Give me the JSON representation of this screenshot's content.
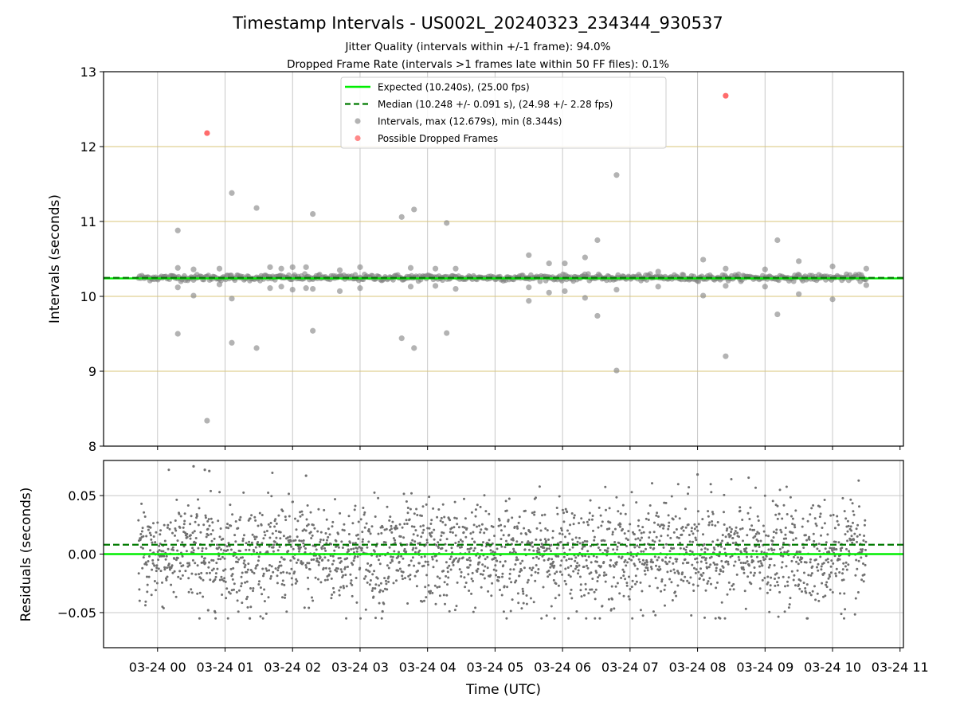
{
  "chart_data": [
    {
      "panel": "intervals",
      "type": "scatter",
      "title": "Timestamp Intervals - US002L_20240323_234344_930537",
      "subtitle_lines": [
        "Jitter Quality (intervals within +/-1 frame): 94.0%",
        "Dropped Frame Rate (intervals >1 frames late within 50 FF files): 0.1%"
      ],
      "xlabel": "",
      "ylabel": "Intervals (seconds)",
      "x_range_hours": [
        -0.8,
        11.05
      ],
      "ylim": [
        8,
        13
      ],
      "yticks": [
        8,
        9,
        10,
        11,
        12,
        13
      ],
      "y_gridlines": [
        9,
        10,
        11,
        12
      ],
      "x_gridlines_hours": [
        0,
        1,
        2,
        3,
        4,
        5,
        6,
        7,
        8,
        9,
        10
      ],
      "grid": true,
      "x_data_span": [
        "2024-03-23 23:43",
        "2024-03-24 10:30"
      ],
      "baseline_interval": 10.25,
      "baseline_band": [
        10.2,
        10.3
      ],
      "expected_line": 10.24,
      "median_line": 10.248,
      "legend": {
        "placement": "top-center",
        "entries": [
          {
            "label": "Expected (10.240s), (25.00 fps)",
            "style": "solid-line",
            "color": "#00ee00"
          },
          {
            "label": "Median (10.248 +/- 0.091 s), (24.98 +/- 2.28 fps)",
            "style": "dashed-line",
            "color": "#007a00"
          },
          {
            "label": "Intervals, max (12.679s), min (8.344s)",
            "style": "dot",
            "color": "#808080"
          },
          {
            "label": "Possible Dropped Frames",
            "style": "dot",
            "color": "#ff3b3b"
          }
        ]
      },
      "outliers": [
        {
          "t": "2024-03-24 00:18",
          "y": 10.88
        },
        {
          "t": "2024-03-24 00:18",
          "y": 10.38
        },
        {
          "t": "2024-03-24 00:18",
          "y": 10.12
        },
        {
          "t": "2024-03-24 00:18",
          "y": 9.5
        },
        {
          "t": "2024-03-24 00:32",
          "y": 10.36
        },
        {
          "t": "2024-03-24 00:32",
          "y": 10.01
        },
        {
          "t": "2024-03-24 00:44",
          "y": 8.34
        },
        {
          "t": "2024-03-24 00:55",
          "y": 10.37
        },
        {
          "t": "2024-03-24 00:55",
          "y": 10.16
        },
        {
          "t": "2024-03-24 01:06",
          "y": 11.38
        },
        {
          "t": "2024-03-24 01:06",
          "y": 9.97
        },
        {
          "t": "2024-03-24 01:06",
          "y": 9.38
        },
        {
          "t": "2024-03-24 01:28",
          "y": 11.18
        },
        {
          "t": "2024-03-24 01:28",
          "y": 9.31
        },
        {
          "t": "2024-03-24 01:40",
          "y": 10.39
        },
        {
          "t": "2024-03-24 01:40",
          "y": 10.11
        },
        {
          "t": "2024-03-24 01:50",
          "y": 10.37
        },
        {
          "t": "2024-03-24 01:50",
          "y": 10.13
        },
        {
          "t": "2024-03-24 02:00",
          "y": 10.39
        },
        {
          "t": "2024-03-24 02:00",
          "y": 10.09
        },
        {
          "t": "2024-03-24 02:12",
          "y": 10.39
        },
        {
          "t": "2024-03-24 02:12",
          "y": 10.11
        },
        {
          "t": "2024-03-24 02:18",
          "y": 11.1
        },
        {
          "t": "2024-03-24 02:18",
          "y": 10.1
        },
        {
          "t": "2024-03-24 02:18",
          "y": 9.54
        },
        {
          "t": "2024-03-24 02:42",
          "y": 10.35
        },
        {
          "t": "2024-03-24 02:42",
          "y": 10.07
        },
        {
          "t": "2024-03-24 03:00",
          "y": 10.39
        },
        {
          "t": "2024-03-24 03:00",
          "y": 10.11
        },
        {
          "t": "2024-03-24 03:37",
          "y": 11.06
        },
        {
          "t": "2024-03-24 03:37",
          "y": 9.44
        },
        {
          "t": "2024-03-24 03:45",
          "y": 10.38
        },
        {
          "t": "2024-03-24 03:45",
          "y": 10.13
        },
        {
          "t": "2024-03-24 03:48",
          "y": 11.16
        },
        {
          "t": "2024-03-24 03:48",
          "y": 9.31
        },
        {
          "t": "2024-03-24 04:07",
          "y": 10.37
        },
        {
          "t": "2024-03-24 04:07",
          "y": 10.14
        },
        {
          "t": "2024-03-24 04:17",
          "y": 10.98
        },
        {
          "t": "2024-03-24 04:17",
          "y": 9.51
        },
        {
          "t": "2024-03-24 04:25",
          "y": 10.37
        },
        {
          "t": "2024-03-24 04:25",
          "y": 10.1
        },
        {
          "t": "2024-03-24 05:30",
          "y": 10.55
        },
        {
          "t": "2024-03-24 05:30",
          "y": 10.12
        },
        {
          "t": "2024-03-24 05:30",
          "y": 9.94
        },
        {
          "t": "2024-03-24 05:48",
          "y": 10.44
        },
        {
          "t": "2024-03-24 05:48",
          "y": 10.05
        },
        {
          "t": "2024-03-24 06:02",
          "y": 10.44
        },
        {
          "t": "2024-03-24 06:02",
          "y": 10.07
        },
        {
          "t": "2024-03-24 06:20",
          "y": 10.52
        },
        {
          "t": "2024-03-24 06:20",
          "y": 9.98
        },
        {
          "t": "2024-03-24 06:31",
          "y": 10.75
        },
        {
          "t": "2024-03-24 06:31",
          "y": 9.74
        },
        {
          "t": "2024-03-24 06:48",
          "y": 11.62
        },
        {
          "t": "2024-03-24 06:48",
          "y": 10.09
        },
        {
          "t": "2024-03-24 06:48",
          "y": 9.01
        },
        {
          "t": "2024-03-24 07:25",
          "y": 10.33
        },
        {
          "t": "2024-03-24 07:25",
          "y": 10.13
        },
        {
          "t": "2024-03-24 08:05",
          "y": 10.49
        },
        {
          "t": "2024-03-24 08:05",
          "y": 10.01
        },
        {
          "t": "2024-03-24 08:25",
          "y": 10.37
        },
        {
          "t": "2024-03-24 08:25",
          "y": 10.14
        },
        {
          "t": "2024-03-24 08:25",
          "y": 9.2
        },
        {
          "t": "2024-03-24 09:00",
          "y": 10.36
        },
        {
          "t": "2024-03-24 09:00",
          "y": 10.13
        },
        {
          "t": "2024-03-24 09:11",
          "y": 10.75
        },
        {
          "t": "2024-03-24 09:11",
          "y": 9.76
        },
        {
          "t": "2024-03-24 09:30",
          "y": 10.47
        },
        {
          "t": "2024-03-24 09:30",
          "y": 10.03
        },
        {
          "t": "2024-03-24 10:00",
          "y": 10.4
        },
        {
          "t": "2024-03-24 10:00",
          "y": 9.96
        },
        {
          "t": "2024-03-24 10:30",
          "y": 10.37
        },
        {
          "t": "2024-03-24 10:30",
          "y": 10.15
        }
      ],
      "dropped_frames": [
        {
          "t": "2024-03-24 00:44",
          "y": 12.18
        },
        {
          "t": "2024-03-24 08:25",
          "y": 12.679
        }
      ],
      "colors": {
        "expected": "#00ee00",
        "median": "#007a00",
        "points": "#808080",
        "dropped": "#ff3b3b",
        "grid_y": "#d8c47a",
        "grid_x": "#c8c8c8"
      }
    },
    {
      "panel": "residuals",
      "type": "scatter",
      "xlabel": "Time (UTC)",
      "ylabel": "Residuals (seconds)",
      "ylim": [
        -0.08,
        0.08
      ],
      "yticks": [
        -0.05,
        0.0,
        0.05
      ],
      "ytick_labels": [
        "−0.05",
        "0.00",
        "0.05"
      ],
      "xticks_hours": [
        0,
        1,
        2,
        3,
        4,
        5,
        6,
        7,
        8,
        9,
        10,
        11
      ],
      "xtick_labels": [
        "03-24 00",
        "03-24 01",
        "03-24 02",
        "03-24 03",
        "03-24 04",
        "03-24 05",
        "03-24 06",
        "03-24 07",
        "03-24 08",
        "03-24 09",
        "03-24 10",
        "03-24 11"
      ],
      "grid": true,
      "expected_line": 0.0,
      "median_line": 0.008,
      "residual_spread_sd": 0.022,
      "residual_range": [
        -0.055,
        0.075
      ],
      "notable_points": [
        {
          "t": "2024-03-24 00:32",
          "y": 0.075
        },
        {
          "t": "2024-03-24 00:42",
          "y": 0.072
        },
        {
          "t": "2024-03-24 00:46",
          "y": 0.071
        },
        {
          "t": "2024-03-24 02:12",
          "y": 0.067
        },
        {
          "t": "2024-03-24 08:00",
          "y": 0.068
        },
        {
          "t": "2024-03-24 00:45",
          "y": -0.048
        },
        {
          "t": "2024-03-24 01:22",
          "y": -0.055
        },
        {
          "t": "2024-03-24 03:20",
          "y": -0.049
        }
      ],
      "colors": {
        "expected": "#00ee00",
        "median": "#007a00",
        "points": "#707070",
        "grid": "#c8c8c8"
      }
    }
  ]
}
